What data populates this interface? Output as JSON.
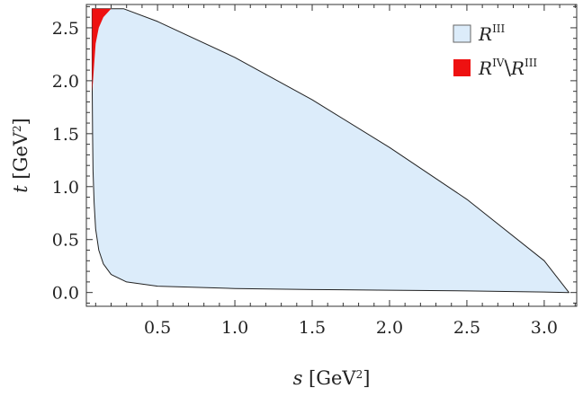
{
  "chart_data": {
    "type": "area",
    "xlabel_var": "s",
    "xlabel_unit": "[GeV",
    "xlabel_close": "]",
    "ylabel_var": "t",
    "ylabel_unit": "[GeV",
    "ylabel_close": "]",
    "unit_sup": "2",
    "xlim": [
      0.04,
      3.21
    ],
    "ylim": [
      -0.13,
      2.72
    ],
    "x_ticks": [
      {
        "value": 0.5,
        "label": "0.5"
      },
      {
        "value": 1.0,
        "label": "1.0"
      },
      {
        "value": 1.5,
        "label": "1.5"
      },
      {
        "value": 2.0,
        "label": "2.0"
      },
      {
        "value": 2.5,
        "label": "2.5"
      },
      {
        "value": 3.0,
        "label": "3.0"
      }
    ],
    "y_ticks": [
      {
        "value": 0.0,
        "label": "0.0"
      },
      {
        "value": 0.5,
        "label": "0.5"
      },
      {
        "value": 1.0,
        "label": "1.0"
      },
      {
        "value": 1.5,
        "label": "1.5"
      },
      {
        "value": 2.0,
        "label": "2.0"
      },
      {
        "value": 2.5,
        "label": "2.5"
      }
    ],
    "legend_position": "top-right",
    "series": [
      {
        "name_base": "R",
        "name_sup": "III",
        "color": "#dcecfa",
        "stroke": "#222222",
        "boundary": [
          [
            0.077,
            2.68
          ],
          [
            0.28,
            2.68
          ],
          [
            0.5,
            2.56
          ],
          [
            1.0,
            2.22
          ],
          [
            1.5,
            1.82
          ],
          [
            2.0,
            1.37
          ],
          [
            2.5,
            0.88
          ],
          [
            3.0,
            0.3
          ],
          [
            3.16,
            0.0
          ],
          [
            3.0,
            0.005
          ],
          [
            2.5,
            0.015
          ],
          [
            2.0,
            0.022
          ],
          [
            1.5,
            0.028
          ],
          [
            1.0,
            0.038
          ],
          [
            0.5,
            0.06
          ],
          [
            0.3,
            0.1
          ],
          [
            0.2,
            0.17
          ],
          [
            0.15,
            0.27
          ],
          [
            0.12,
            0.4
          ],
          [
            0.1,
            0.6
          ],
          [
            0.09,
            0.85
          ],
          [
            0.083,
            1.15
          ],
          [
            0.08,
            1.5
          ],
          [
            0.078,
            1.9
          ],
          [
            0.077,
            2.3
          ],
          [
            0.077,
            2.68
          ]
        ]
      },
      {
        "name_base": "R",
        "name_sup": "IV",
        "name_sep": "\\",
        "name_base2": "R",
        "name_sup2": "III",
        "color": "#ee1111",
        "boundary": [
          [
            0.077,
            1.9
          ],
          [
            0.077,
            2.68
          ],
          [
            0.2,
            2.68
          ],
          [
            0.15,
            2.6
          ],
          [
            0.12,
            2.5
          ],
          [
            0.1,
            2.35
          ],
          [
            0.09,
            2.15
          ],
          [
            0.083,
            2.0
          ],
          [
            0.077,
            1.9
          ]
        ]
      }
    ]
  }
}
